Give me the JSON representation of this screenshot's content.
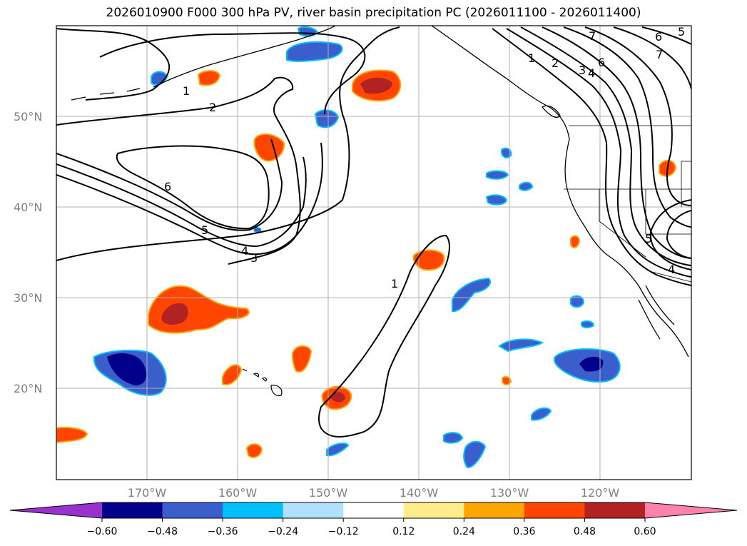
{
  "title": "2026010900 F000 300 hPa PV, river basin precipitation PC (2026011100 - 2026011400)",
  "map": {
    "lon_labels": [
      "170°W",
      "160°W",
      "150°W",
      "140°W",
      "130°W",
      "120°W"
    ],
    "lat_labels": [
      "50°N",
      "40°N",
      "30°N",
      "20°N"
    ],
    "pv_contour_labels": [
      "1",
      "2",
      "6",
      "5",
      "4",
      "3",
      "1",
      "7",
      "6",
      "5",
      "7",
      "1",
      "2",
      "3",
      "4",
      "6",
      "4",
      "5"
    ]
  },
  "colorbar": {
    "ticks": [
      "−0.60",
      "−0.48",
      "−0.36",
      "−0.24",
      "−0.12",
      "0.12",
      "0.24",
      "0.36",
      "0.48",
      "0.60"
    ],
    "colors": [
      "#9932cc",
      "#00008b",
      "#3a5fcd",
      "#00bfff",
      "#b0e2ff",
      "#ffffff",
      "#ffec8b",
      "#ffa500",
      "#ff4500",
      "#b22222",
      "#ff82ab"
    ]
  }
}
